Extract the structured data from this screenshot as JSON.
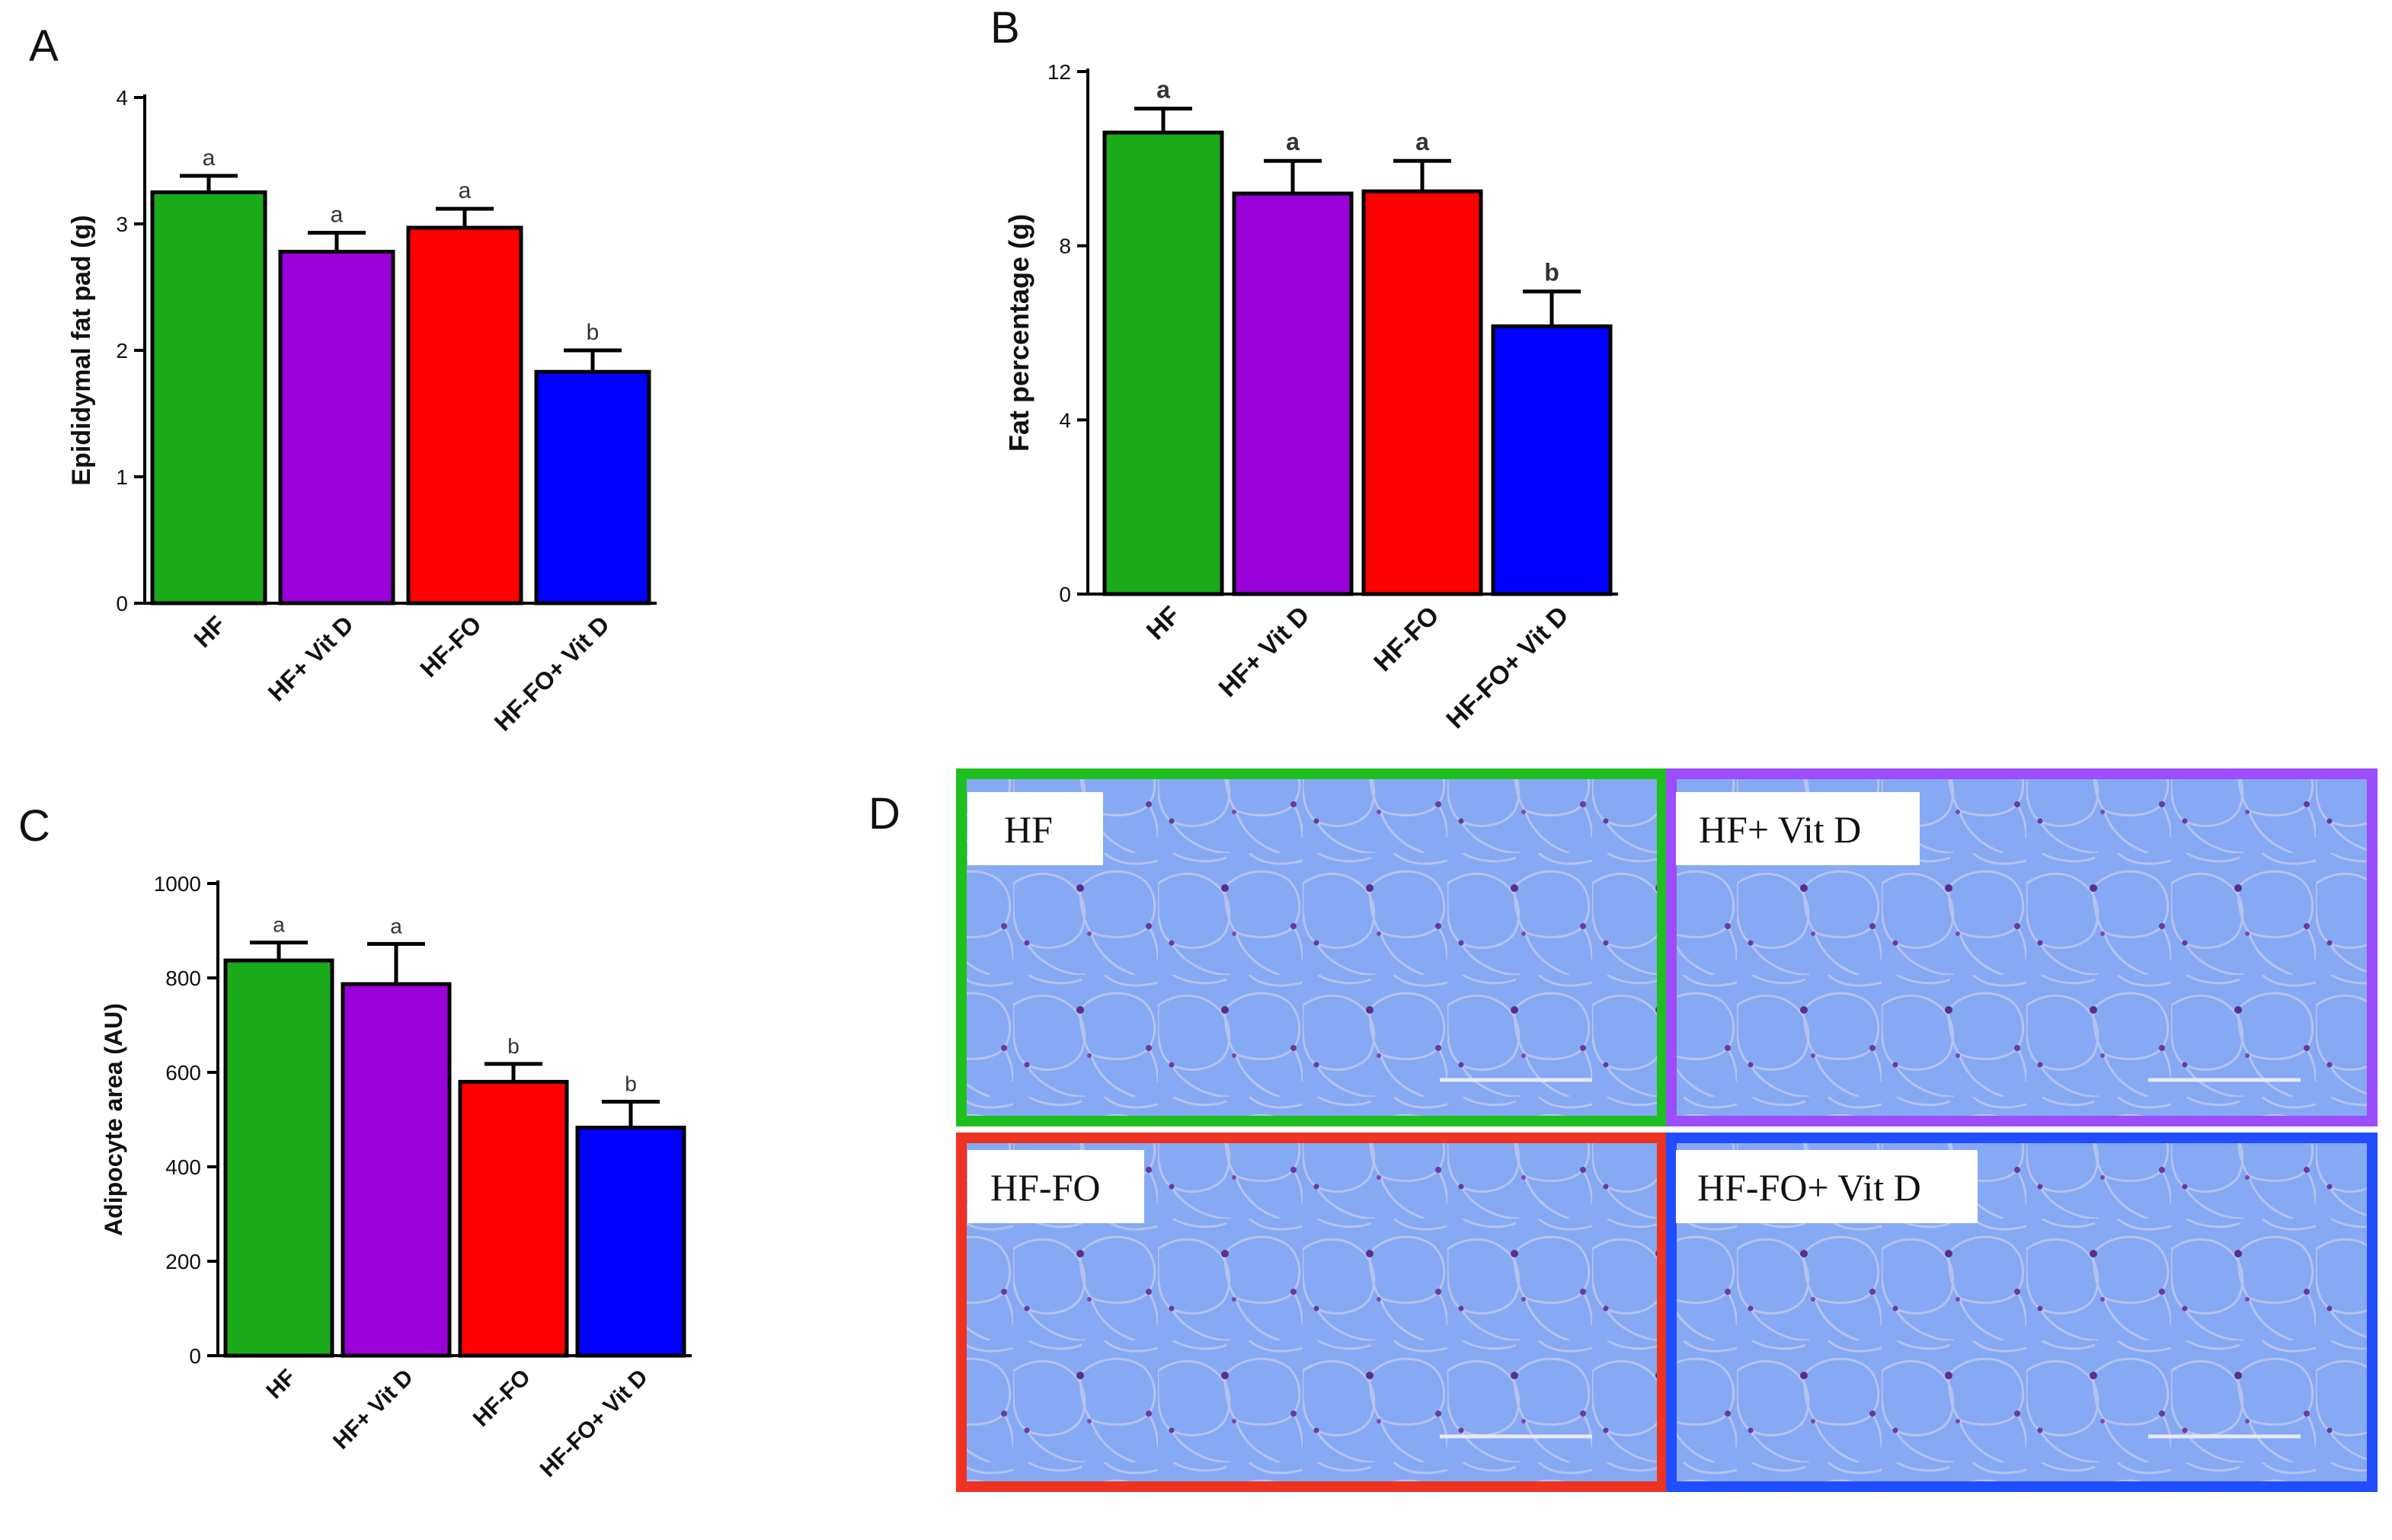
{
  "chart_data": [
    {
      "panel": "A",
      "type": "bar",
      "categories": [
        "HF",
        "HF+ Vit D",
        "HF-FO",
        "HF-FO+ Vit D"
      ],
      "values": [
        3.25,
        2.78,
        2.97,
        1.83
      ],
      "errors": [
        0.13,
        0.15,
        0.15,
        0.17
      ],
      "significance": [
        "a",
        "a",
        "a",
        "b"
      ],
      "colors": [
        "#1aaa1a",
        "#9a00d8",
        "#ff0000",
        "#0000ff"
      ],
      "ylabel": "Epididymal fat pad  (g)",
      "xlabel": "",
      "ylim": [
        0,
        4
      ],
      "yticks": [
        "0",
        "1",
        "2",
        "3",
        "4"
      ]
    },
    {
      "panel": "B",
      "type": "bar",
      "categories": [
        "HF",
        "HF+ Vit D",
        "HF-FO",
        "HF-FO+ Vit D"
      ],
      "values": [
        10.6,
        9.2,
        9.25,
        6.15
      ],
      "errors": [
        0.55,
        0.75,
        0.7,
        0.8
      ],
      "significance": [
        "a",
        "a",
        "a",
        "b"
      ],
      "colors": [
        "#1aaa1a",
        "#9a00d8",
        "#ff0000",
        "#0000ff"
      ],
      "ylabel": "Fat percentage (g)",
      "xlabel": "",
      "ylim": [
        0,
        12
      ],
      "yticks": [
        "0",
        "4",
        "8",
        "12"
      ]
    },
    {
      "panel": "C",
      "type": "bar",
      "categories": [
        "HF",
        "HF+ Vit D",
        "HF-FO",
        "HF-FO+ Vit D"
      ],
      "values": [
        837,
        787,
        580,
        483
      ],
      "errors": [
        38,
        85,
        38,
        55
      ],
      "significance": [
        "a",
        "a",
        "b",
        "b"
      ],
      "colors": [
        "#1aaa1a",
        "#9a00d8",
        "#ff0000",
        "#0000ff"
      ],
      "ylabel": "Adipocyte area (AU)",
      "xlabel": "",
      "ylim": [
        0,
        1000
      ],
      "yticks": [
        "0",
        "200",
        "400",
        "600",
        "800",
        "1000"
      ]
    }
  ],
  "panels": {
    "a": "A",
    "b": "B",
    "c": "C",
    "d": "D"
  },
  "micrographs": [
    {
      "label": "HF",
      "border_color": "#1fbf1f"
    },
    {
      "label": "HF+ Vit D",
      "border_color": "#9b4dff"
    },
    {
      "label": "HF-FO",
      "border_color": "#ee3322"
    },
    {
      "label": "HF-FO+ Vit D",
      "border_color": "#1f4dff"
    }
  ]
}
